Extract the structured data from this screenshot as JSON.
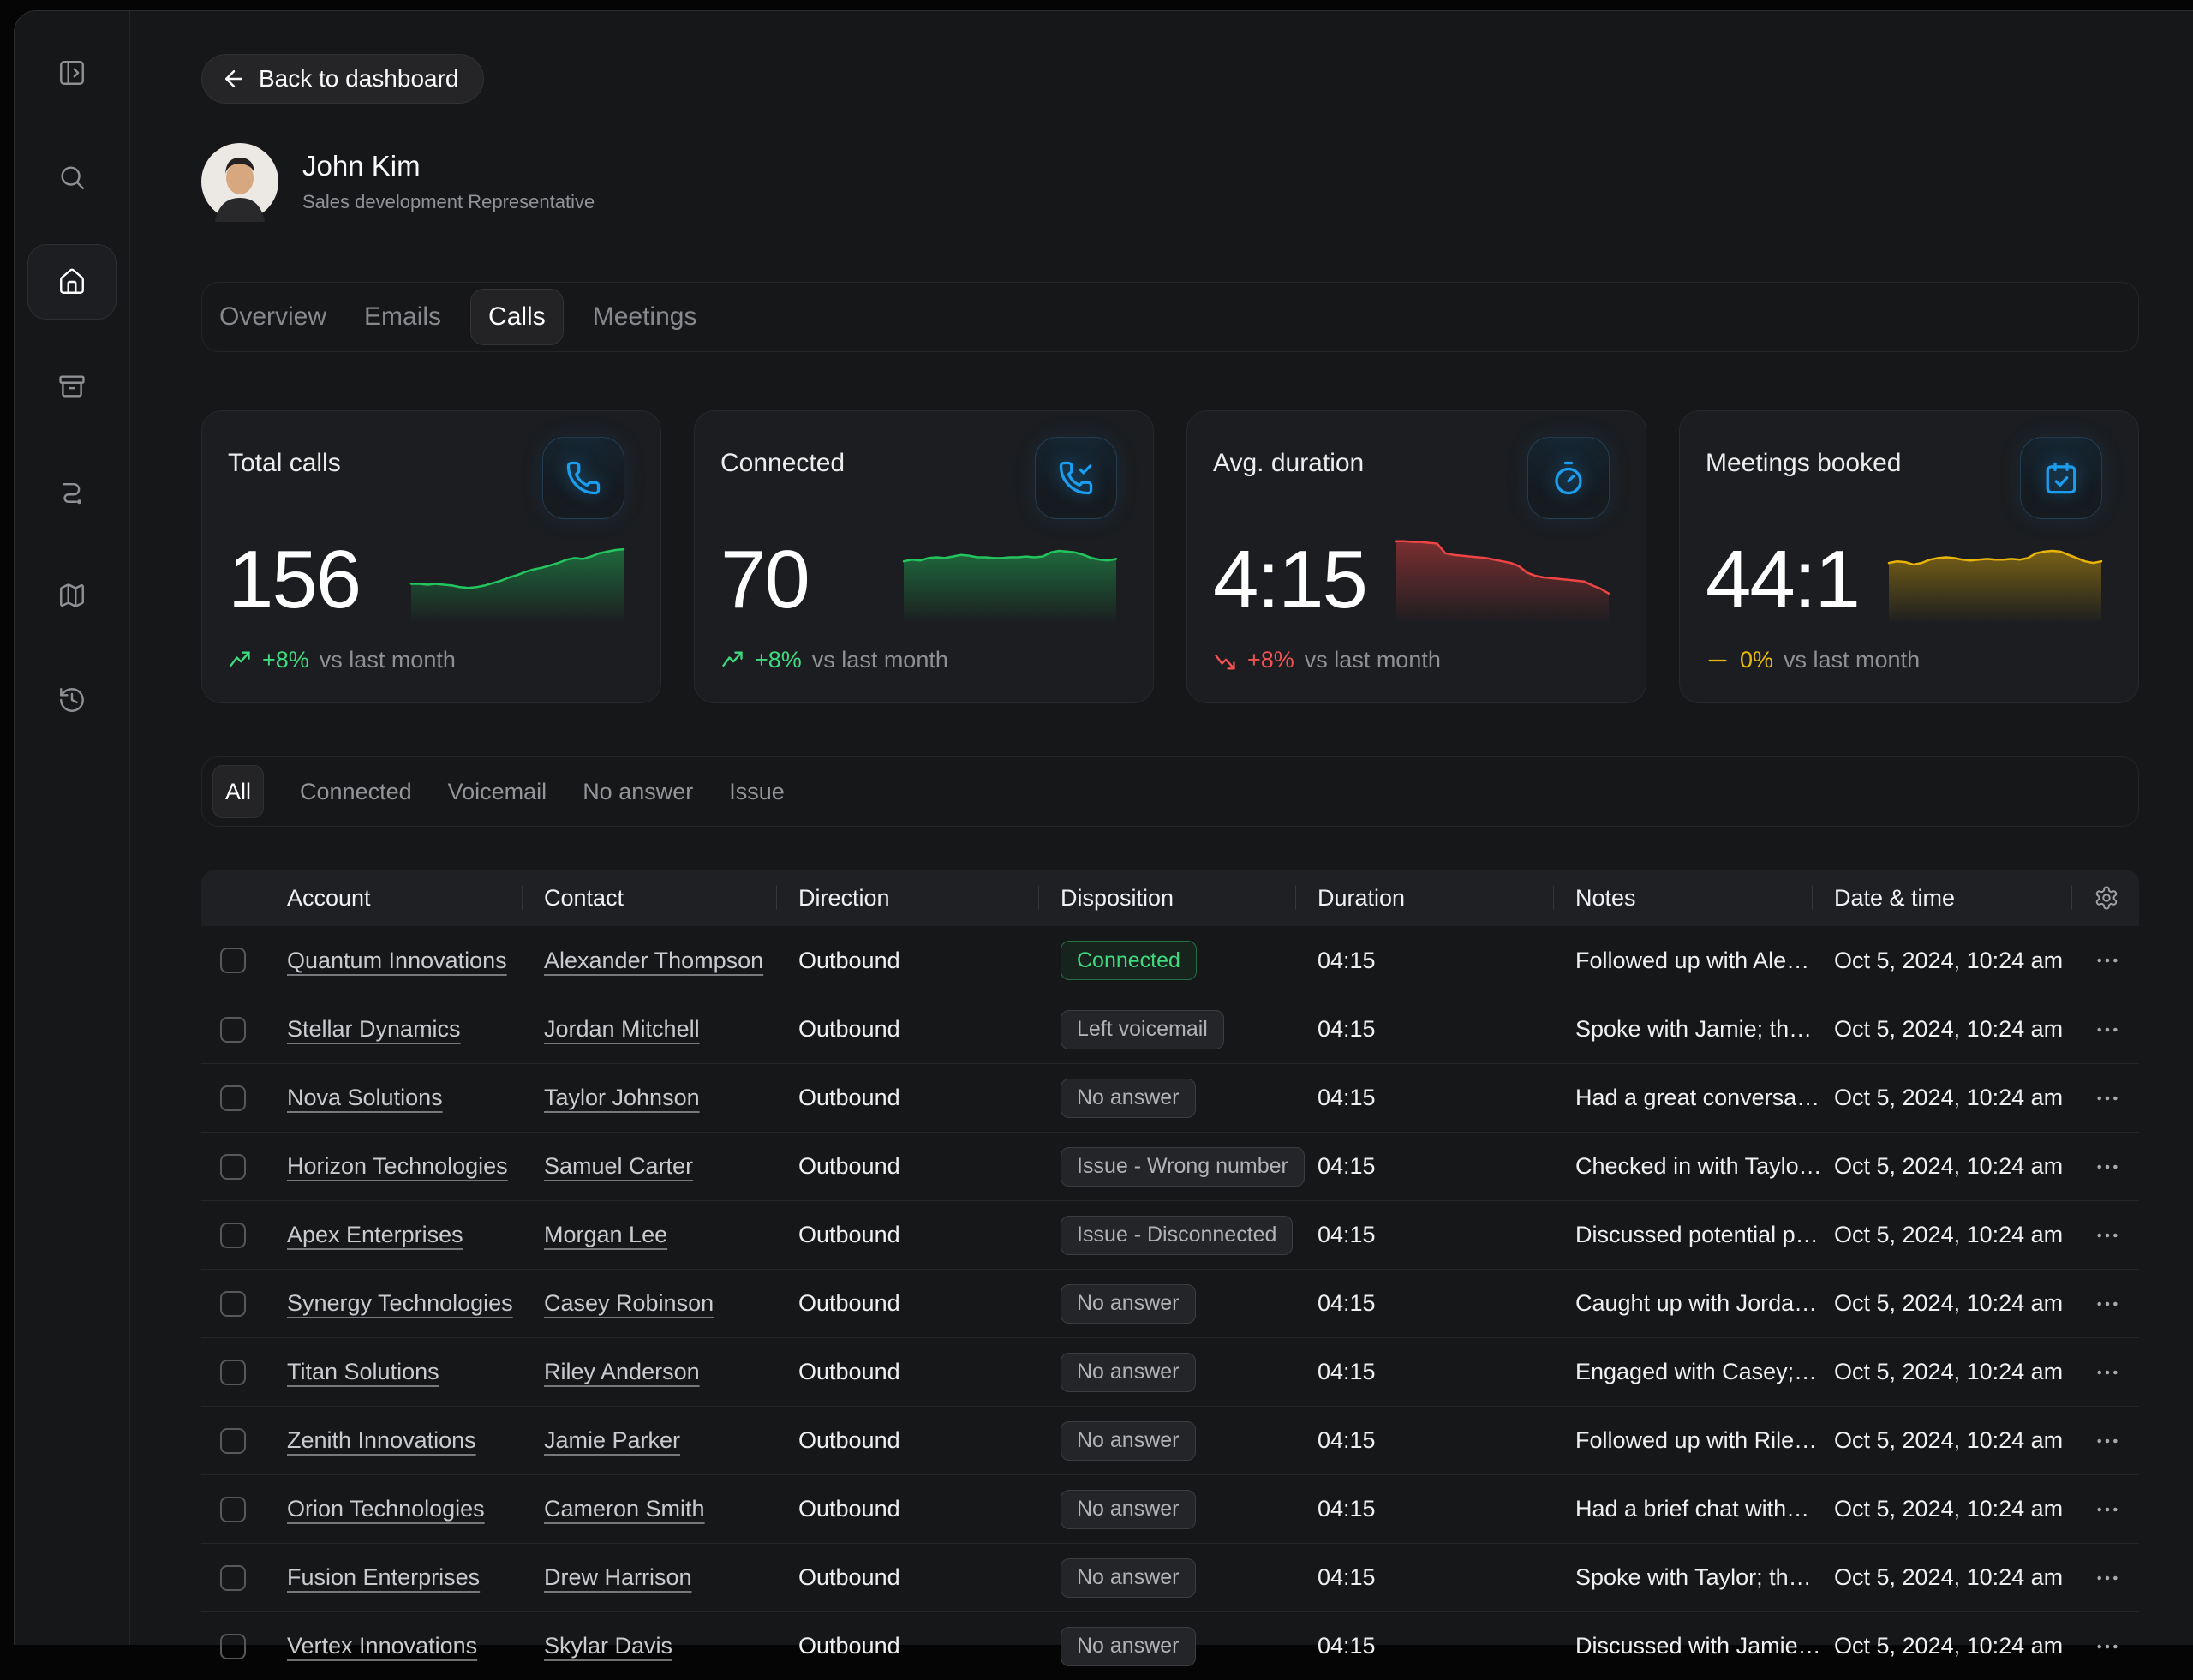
{
  "back_button": {
    "label": "Back to dashboard",
    "icon": "arrow-left"
  },
  "profile": {
    "name": "John Kim",
    "role": "Sales development Representative"
  },
  "sidebar": {
    "items": [
      {
        "icon": "panel-toggle",
        "active": false
      },
      {
        "icon": "search",
        "active": false
      },
      {
        "icon": "home",
        "active": true
      },
      {
        "icon": "archive",
        "active": false
      },
      {
        "icon": "route",
        "active": false
      },
      {
        "icon": "map",
        "active": false
      },
      {
        "icon": "history",
        "active": false
      }
    ]
  },
  "tabs": [
    {
      "label": "Overview",
      "active": false
    },
    {
      "label": "Emails",
      "active": false
    },
    {
      "label": "Calls",
      "active": true
    },
    {
      "label": "Meetings",
      "active": false
    }
  ],
  "stat_cards": [
    {
      "title": "Total calls",
      "icon": "phone",
      "value": "156",
      "trend": {
        "direction": "up",
        "value": "+8%",
        "label": "vs last month",
        "color": "#3fd97f"
      },
      "sparkline": {
        "type": "area",
        "color": "#22c55e",
        "values": [
          42,
          42,
          41,
          42,
          41,
          40,
          38,
          37,
          38,
          40,
          43,
          46,
          50,
          53,
          57,
          60,
          62,
          65,
          68,
          72,
          74,
          73,
          76,
          80,
          82,
          84,
          85
        ]
      }
    },
    {
      "title": "Connected",
      "icon": "phone-check",
      "value": "70",
      "trend": {
        "direction": "up",
        "value": "+8%",
        "label": "vs last month",
        "color": "#3fd97f"
      },
      "sparkline": {
        "type": "area",
        "color": "#22c55e",
        "values": [
          70,
          72,
          71,
          74,
          75,
          74,
          76,
          78,
          77,
          75,
          75,
          74,
          74,
          75,
          75,
          76,
          75,
          76,
          81,
          83,
          82,
          81,
          78,
          74,
          72,
          71,
          73
        ]
      }
    },
    {
      "title": "Avg. duration",
      "icon": "timer",
      "value": "4:15",
      "trend": {
        "direction": "down",
        "value": "+8%",
        "label": "vs last month",
        "color": "#f05252"
      },
      "sparkline": {
        "type": "area",
        "color": "#ef4444",
        "values": [
          95,
          95,
          94,
          94,
          93,
          92,
          80,
          78,
          77,
          76,
          75,
          74,
          72,
          70,
          68,
          64,
          56,
          52,
          50,
          49,
          48,
          47,
          46,
          45,
          40,
          36,
          30
        ]
      }
    },
    {
      "title": "Meetings booked",
      "icon": "calendar-check",
      "value": "44:1",
      "trend": {
        "direction": "flat",
        "value": "0%",
        "label": "vs last month",
        "color": "#e8b90c"
      },
      "sparkline": {
        "type": "area",
        "color": "#eab308",
        "values": [
          68,
          70,
          69,
          66,
          68,
          72,
          74,
          75,
          74,
          72,
          71,
          72,
          73,
          72,
          72,
          73,
          72,
          74,
          80,
          82,
          83,
          82,
          78,
          74,
          70,
          68,
          70
        ]
      }
    }
  ],
  "filters": [
    {
      "label": "All",
      "active": true
    },
    {
      "label": "Connected",
      "active": false
    },
    {
      "label": "Voicemail",
      "active": false
    },
    {
      "label": "No answer",
      "active": false
    },
    {
      "label": "Issue",
      "active": false
    }
  ],
  "table": {
    "columns": [
      "",
      "Account",
      "Contact",
      "Direction",
      "Disposition",
      "Duration",
      "Notes",
      "Date & time",
      "settings-icon"
    ],
    "rows": [
      {
        "account": "Quantum Innovations",
        "contact": "Alexander Thompson",
        "direction": "Outbound",
        "disposition": {
          "label": "Connected",
          "variant": "success"
        },
        "duration": "04:15",
        "notes": "Followed up with Ale…",
        "datetime": "Oct 5, 2024, 10:24 am"
      },
      {
        "account": "Stellar Dynamics",
        "contact": "Jordan Mitchell",
        "direction": "Outbound",
        "disposition": {
          "label": "Left voicemail",
          "variant": "neutral"
        },
        "duration": "04:15",
        "notes": "Spoke with Jamie; th…",
        "datetime": "Oct 5, 2024, 10:24 am"
      },
      {
        "account": "Nova Solutions",
        "contact": "Taylor Johnson",
        "direction": "Outbound",
        "disposition": {
          "label": "No answer",
          "variant": "neutral"
        },
        "duration": "04:15",
        "notes": "Had a great conversa…",
        "datetime": "Oct 5, 2024, 10:24 am"
      },
      {
        "account": "Horizon Technologies",
        "contact": "Samuel Carter",
        "direction": "Outbound",
        "disposition": {
          "label": "Issue - Wrong number",
          "variant": "neutral"
        },
        "duration": "04:15",
        "notes": "Checked in with Taylo…",
        "datetime": "Oct 5, 2024, 10:24 am"
      },
      {
        "account": "Apex Enterprises",
        "contact": "Morgan Lee",
        "direction": "Outbound",
        "disposition": {
          "label": "Issue - Disconnected",
          "variant": "neutral"
        },
        "duration": "04:15",
        "notes": "Discussed potential p…",
        "datetime": "Oct 5, 2024, 10:24 am"
      },
      {
        "account": "Synergy Technologies",
        "contact": "Casey Robinson",
        "direction": "Outbound",
        "disposition": {
          "label": "No answer",
          "variant": "neutral"
        },
        "duration": "04:15",
        "notes": "Caught up with Jorda…",
        "datetime": "Oct 5, 2024, 10:24 am"
      },
      {
        "account": "Titan Solutions",
        "contact": "Riley Anderson",
        "direction": "Outbound",
        "disposition": {
          "label": "No answer",
          "variant": "neutral"
        },
        "duration": "04:15",
        "notes": "Engaged with Casey;…",
        "datetime": "Oct 5, 2024, 10:24 am"
      },
      {
        "account": "Zenith Innovations",
        "contact": "Jamie Parker",
        "direction": "Outbound",
        "disposition": {
          "label": "No answer",
          "variant": "neutral"
        },
        "duration": "04:15",
        "notes": "Followed up with Rile…",
        "datetime": "Oct 5, 2024, 10:24 am"
      },
      {
        "account": "Orion Technologies",
        "contact": "Cameron Smith",
        "direction": "Outbound",
        "disposition": {
          "label": "No answer",
          "variant": "neutral"
        },
        "duration": "04:15",
        "notes": "Had a brief chat with…",
        "datetime": "Oct 5, 2024, 10:24 am"
      },
      {
        "account": "Fusion Enterprises",
        "contact": "Drew Harrison",
        "direction": "Outbound",
        "disposition": {
          "label": "No answer",
          "variant": "neutral"
        },
        "duration": "04:15",
        "notes": "Spoke with Taylor; th…",
        "datetime": "Oct 5, 2024, 10:24 am"
      },
      {
        "account": "Vertex Innovations",
        "contact": "Skylar Davis",
        "direction": "Outbound",
        "disposition": {
          "label": "No answer",
          "variant": "neutral"
        },
        "duration": "04:15",
        "notes": "Discussed with Jamie…",
        "datetime": "Oct 5, 2024, 10:24 am"
      }
    ]
  },
  "colors": {
    "accent_blue": "#1b9df0",
    "green": "#22c55e",
    "red": "#ef4444",
    "yellow": "#eab308",
    "card_bg": "#1b1d20",
    "app_bg": "#161719"
  }
}
